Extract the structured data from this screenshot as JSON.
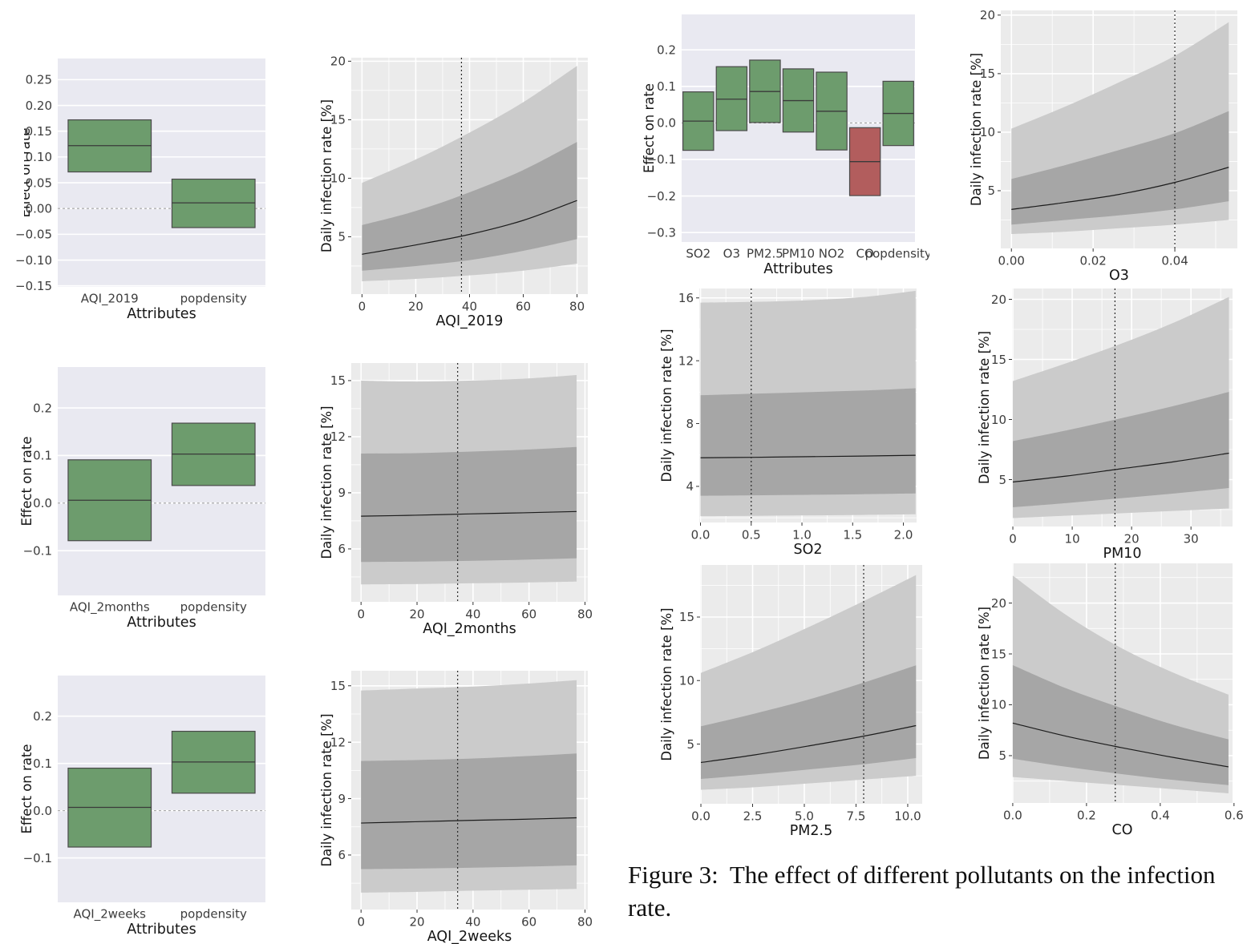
{
  "page": {
    "background": "#ffffff"
  },
  "figure_caption": {
    "label": "Figure 3:",
    "text": "The effect of different pollutants on the infection rate."
  },
  "colors": {
    "box_green": "#6d9c6d",
    "box_red": "#b25d5d",
    "box_edge": "#4a4a4a",
    "median_line": "#3a3a3a",
    "box_panel_bg": "#e9e9f1",
    "line_panel_bg": "#ebebeb",
    "grid_white": "#ffffff",
    "band_outer": "#cbcbcb",
    "band_inner": "#a6a6a6",
    "mean_line": "#1c1c1c",
    "tick_text": "#3d3d3d",
    "label_text": "#141414",
    "zero_dash": "#a0a0a0",
    "vline": "#2a2a2a"
  },
  "chart_data": [
    {
      "id": "box-aqi2019",
      "type": "box",
      "xlabel": "Attributes",
      "ylabel": "Effect on rate",
      "categories": [
        "AQI_2019",
        "popdensity"
      ],
      "boxes": [
        {
          "category": "AQI_2019",
          "low": 0.071,
          "median": 0.122,
          "high": 0.172,
          "color": "green"
        },
        {
          "category": "popdensity",
          "low": -0.037,
          "median": 0.011,
          "high": 0.057,
          "color": "green"
        }
      ],
      "ylim": [
        -0.152,
        0.291
      ],
      "ytick_vals": [
        0.25,
        0.2,
        0.15,
        0.1,
        0.05,
        0.0,
        -0.05,
        -0.1,
        -0.15
      ],
      "ytick_labels": [
        "0.25",
        "0.20",
        "0.15",
        "0.10",
        "0.05",
        "0.00",
        "−0.05",
        "−0.10",
        "−0.15"
      ],
      "zero_line": true,
      "box_width_frac": 0.8
    },
    {
      "id": "line-aqi2019",
      "type": "band-line",
      "xlabel": "AQI_2019",
      "ylabel": "Daily infection rate [%]",
      "x": [
        0,
        20,
        40,
        60,
        80
      ],
      "mean": [
        3.5,
        4.3,
        5.2,
        6.4,
        8.1
      ],
      "inner_low": [
        2.1,
        2.5,
        3.0,
        3.8,
        4.8
      ],
      "inner_high": [
        6.0,
        7.2,
        8.8,
        10.7,
        13.1
      ],
      "outer_low": [
        1.2,
        1.4,
        1.7,
        2.1,
        2.7
      ],
      "outer_high": [
        9.6,
        11.6,
        13.9,
        16.5,
        19.6
      ],
      "vline_x": 37,
      "xlim": [
        -4,
        84
      ],
      "ylim": [
        0.1,
        20.3
      ],
      "xtick_vals": [
        0,
        20,
        40,
        60,
        80
      ],
      "xtick_labels": [
        "0",
        "20",
        "40",
        "60",
        "80"
      ],
      "ytick_vals": [
        5,
        10,
        15,
        20
      ],
      "ytick_labels": [
        "5",
        "10",
        "15",
        "20"
      ]
    },
    {
      "id": "box-pollutants",
      "type": "box",
      "xlabel": "Attributes",
      "ylabel": "Effect on rate",
      "categories": [
        "SO2",
        "O3",
        "PM2.5",
        "PM10",
        "NO2",
        "CO",
        "popdensity"
      ],
      "boxes": [
        {
          "category": "SO2",
          "low": -0.075,
          "median": 0.005,
          "high": 0.085,
          "color": "green"
        },
        {
          "category": "O3",
          "low": -0.021,
          "median": 0.065,
          "high": 0.154,
          "color": "green"
        },
        {
          "category": "PM2.5",
          "low": 0.001,
          "median": 0.086,
          "high": 0.172,
          "color": "green"
        },
        {
          "category": "PM10",
          "low": -0.025,
          "median": 0.061,
          "high": 0.148,
          "color": "green"
        },
        {
          "category": "NO2",
          "low": -0.074,
          "median": 0.032,
          "high": 0.139,
          "color": "green"
        },
        {
          "category": "CO",
          "low": -0.199,
          "median": -0.106,
          "high": -0.013,
          "color": "red"
        },
        {
          "category": "popdensity",
          "low": -0.062,
          "median": 0.026,
          "high": 0.114,
          "color": "green"
        }
      ],
      "ylim": [
        -0.326,
        0.297
      ],
      "ytick_vals": [
        0.2,
        0.1,
        0.0,
        -0.1,
        -0.2,
        -0.3
      ],
      "ytick_labels": [
        "0.2",
        "0.1",
        "0.0",
        "−0.1",
        "−0.2",
        "−0.3"
      ],
      "zero_line": true,
      "box_width_frac": 0.92
    },
    {
      "id": "line-o3",
      "type": "band-line",
      "xlabel": "O3",
      "ylabel": "Daily infection rate [%]",
      "x": [
        0,
        0.0133,
        0.0266,
        0.0399,
        0.0532
      ],
      "mean": [
        3.4,
        4.0,
        4.7,
        5.7,
        7.0
      ],
      "inner_low": [
        2.1,
        2.5,
        2.9,
        3.4,
        4.1
      ],
      "inner_high": [
        6.0,
        7.2,
        8.5,
        9.9,
        11.8
      ],
      "outer_low": [
        1.3,
        1.5,
        1.8,
        2.1,
        2.5
      ],
      "outer_high": [
        10.3,
        12.2,
        14.3,
        16.5,
        19.4
      ],
      "vline_x": 0.04,
      "xlim": [
        -0.0026,
        0.0553
      ],
      "ylim": [
        0.07,
        20.4
      ],
      "xtick_vals": [
        0,
        0.02,
        0.04
      ],
      "xtick_labels": [
        "0.00",
        "0.02",
        "0.04"
      ],
      "ytick_vals": [
        5,
        10,
        15,
        20
      ],
      "ytick_labels": [
        "5",
        "10",
        "15",
        "20"
      ]
    },
    {
      "id": "box-aqi2months",
      "type": "box",
      "xlabel": "Attributes",
      "ylabel": "Effect on rate",
      "categories": [
        "AQI_2months",
        "popdensity"
      ],
      "boxes": [
        {
          "category": "AQI_2months",
          "low": -0.079,
          "median": 0.006,
          "high": 0.091,
          "color": "green"
        },
        {
          "category": "popdensity",
          "low": 0.037,
          "median": 0.103,
          "high": 0.168,
          "color": "green"
        }
      ],
      "ylim": [
        -0.194,
        0.286
      ],
      "ytick_vals": [
        0.2,
        0.1,
        0.0,
        -0.1
      ],
      "ytick_labels": [
        "0.2",
        "0.1",
        "0.0",
        "−0.1"
      ],
      "zero_line": true,
      "box_width_frac": 0.8
    },
    {
      "id": "line-aqi2months",
      "type": "band-line",
      "xlabel": "AQI_2months",
      "ylabel": "Daily infection rate [%]",
      "x": [
        0,
        19.25,
        38.5,
        57.75,
        77
      ],
      "mean": [
        7.75,
        7.8,
        7.87,
        7.93,
        8.0
      ],
      "inner_low": [
        5.3,
        5.32,
        5.36,
        5.42,
        5.5
      ],
      "inner_high": [
        11.1,
        11.12,
        11.2,
        11.3,
        11.45
      ],
      "outer_low": [
        4.1,
        4.12,
        4.16,
        4.2,
        4.25
      ],
      "outer_high": [
        15.0,
        14.95,
        15.0,
        15.1,
        15.3
      ],
      "vline_x": 34.5,
      "xlim": [
        -3.5,
        81
      ],
      "ylim": [
        3.17,
        15.94
      ],
      "xtick_vals": [
        0,
        20,
        40,
        60,
        80
      ],
      "xtick_labels": [
        "0",
        "20",
        "40",
        "60",
        "80"
      ],
      "ytick_vals": [
        6,
        9,
        12,
        15
      ],
      "ytick_labels": [
        "6",
        "9",
        "12",
        "15"
      ]
    },
    {
      "id": "line-so2",
      "type": "band-line",
      "xlabel": "SO2",
      "ylabel": "Daily infection rate [%]",
      "x": [
        0,
        0.53,
        1.06,
        1.59,
        2.12
      ],
      "mean": [
        5.82,
        5.85,
        5.89,
        5.93,
        5.98
      ],
      "inner_low": [
        3.4,
        3.43,
        3.46,
        3.5,
        3.55
      ],
      "inner_high": [
        9.8,
        9.9,
        10.0,
        10.1,
        10.25
      ],
      "outer_low": [
        2.1,
        2.12,
        2.15,
        2.18,
        2.22
      ],
      "outer_high": [
        15.7,
        15.75,
        15.85,
        16.05,
        16.45
      ],
      "vline_x": 0.5,
      "xlim": [
        -0.012,
        2.13
      ],
      "ylim": [
        1.7,
        16.6
      ],
      "xtick_vals": [
        0,
        0.5,
        1,
        1.5,
        2
      ],
      "xtick_labels": [
        "0.0",
        "0.5",
        "1.0",
        "1.5",
        "2.0"
      ],
      "ytick_vals": [
        4,
        8,
        12,
        16
      ],
      "ytick_labels": [
        "4",
        "8",
        "12",
        "16"
      ]
    },
    {
      "id": "line-pm10",
      "type": "band-line",
      "xlabel": "PM10",
      "ylabel": "Daily infection rate [%]",
      "x": [
        0,
        9.1,
        18.2,
        27.3,
        36.4
      ],
      "mean": [
        4.8,
        5.3,
        5.9,
        6.5,
        7.2
      ],
      "inner_low": [
        2.7,
        3.05,
        3.45,
        3.85,
        4.3
      ],
      "inner_high": [
        8.2,
        9.1,
        10.1,
        11.15,
        12.3
      ],
      "outer_low": [
        1.8,
        2.0,
        2.2,
        2.4,
        2.6
      ],
      "outer_high": [
        13.2,
        14.7,
        16.3,
        18.1,
        20.2
      ],
      "vline_x": 17.2,
      "xlim": [
        -0.14,
        37.0
      ],
      "ylim": [
        1.1,
        20.9
      ],
      "xtick_vals": [
        0,
        10,
        20,
        30
      ],
      "xtick_labels": [
        "0",
        "10",
        "20",
        "30"
      ],
      "ytick_vals": [
        5,
        10,
        15,
        20
      ],
      "ytick_labels": [
        "5",
        "10",
        "15",
        "20"
      ]
    },
    {
      "id": "box-aqi2weeks",
      "type": "box",
      "xlabel": "Attributes",
      "ylabel": "Effect on rate",
      "categories": [
        "AQI_2weeks",
        "popdensity"
      ],
      "boxes": [
        {
          "category": "AQI_2weeks",
          "low": -0.077,
          "median": 0.007,
          "high": 0.09,
          "color": "green"
        },
        {
          "category": "popdensity",
          "low": 0.037,
          "median": 0.103,
          "high": 0.168,
          "color": "green"
        }
      ],
      "ylim": [
        -0.194,
        0.286
      ],
      "ytick_vals": [
        0.2,
        0.1,
        0.0,
        -0.1
      ],
      "ytick_labels": [
        "0.2",
        "0.1",
        "0.0",
        "−0.1"
      ],
      "zero_line": true,
      "box_width_frac": 0.8
    },
    {
      "id": "line-aqi2weeks",
      "type": "band-line",
      "xlabel": "AQI_2weeks",
      "ylabel": "Daily infection rate [%]",
      "x": [
        0,
        19.25,
        38.5,
        57.75,
        77
      ],
      "mean": [
        7.7,
        7.77,
        7.84,
        7.9,
        7.98
      ],
      "inner_low": [
        5.25,
        5.28,
        5.32,
        5.38,
        5.45
      ],
      "inner_high": [
        11.0,
        11.05,
        11.12,
        11.25,
        11.4
      ],
      "outer_low": [
        4.0,
        4.04,
        4.1,
        4.15,
        4.2
      ],
      "outer_high": [
        14.75,
        14.85,
        14.95,
        15.1,
        15.3
      ],
      "vline_x": 34.5,
      "xlim": [
        -3.5,
        81
      ],
      "ylim": [
        3.1,
        15.8
      ],
      "xtick_vals": [
        0,
        20,
        40,
        60,
        80
      ],
      "xtick_labels": [
        "0",
        "20",
        "40",
        "60",
        "80"
      ],
      "ytick_vals": [
        6,
        9,
        12,
        15
      ],
      "ytick_labels": [
        "6",
        "9",
        "12",
        "15"
      ]
    },
    {
      "id": "line-pm25",
      "type": "band-line",
      "xlabel": "PM2.5",
      "ylabel": "Daily infection rate [%]",
      "x": [
        0,
        2.6,
        5.2,
        7.8,
        10.4
      ],
      "mean": [
        3.55,
        4.15,
        4.85,
        5.6,
        6.45
      ],
      "inner_low": [
        2.25,
        2.6,
        3.0,
        3.4,
        3.9
      ],
      "inner_high": [
        6.4,
        7.4,
        8.5,
        9.8,
        11.2
      ],
      "outer_low": [
        1.4,
        1.6,
        1.9,
        2.2,
        2.5
      ],
      "outer_high": [
        10.6,
        12.3,
        14.2,
        16.2,
        18.3
      ],
      "vline_x": 7.87,
      "xlim": [
        -0.04,
        10.7
      ],
      "ylim": [
        0.3,
        19.1
      ],
      "xtick_vals": [
        0,
        2.5,
        5,
        7.5,
        10
      ],
      "xtick_labels": [
        "0.0",
        "2.5",
        "5.0",
        "7.5",
        "10.0"
      ],
      "ytick_vals": [
        5,
        10,
        15
      ],
      "ytick_labels": [
        "5",
        "10",
        "15"
      ]
    },
    {
      "id": "line-co",
      "type": "band-line",
      "xlabel": "CO",
      "ylabel": "Daily infection rate [%]",
      "x": [
        0,
        0.146,
        0.293,
        0.439,
        0.585
      ],
      "mean": [
        8.2,
        6.9,
        5.8,
        4.8,
        3.9
      ],
      "inner_low": [
        4.7,
        3.9,
        3.2,
        2.6,
        2.1
      ],
      "inner_high": [
        13.9,
        11.6,
        9.7,
        8.0,
        6.6
      ],
      "outer_low": [
        2.9,
        2.5,
        2.1,
        1.7,
        1.3
      ],
      "outer_high": [
        22.7,
        18.8,
        15.6,
        13.1,
        11.0
      ],
      "vline_x": 0.278,
      "xlim": [
        -0.002,
        0.596
      ],
      "ylim": [
        0.35,
        23.9
      ],
      "xtick_vals": [
        0,
        0.2,
        0.4,
        0.6
      ],
      "xtick_labels": [
        "0.0",
        "0.2",
        "0.4",
        "0.6"
      ],
      "ytick_vals": [
        5,
        10,
        15,
        20
      ],
      "ytick_labels": [
        "5",
        "10",
        "15",
        "20"
      ]
    }
  ]
}
